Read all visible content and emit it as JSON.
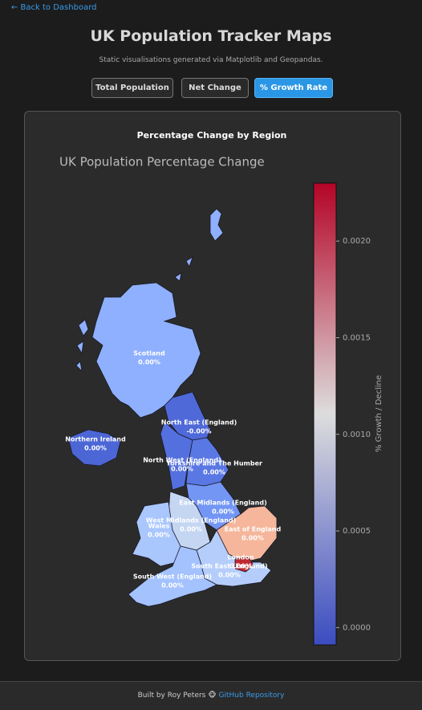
{
  "nav": {
    "back": "← Back to Dashboard"
  },
  "header": {
    "title": "UK Population Tracker Maps",
    "subtitle": "Static visualisations generated via Matplotlib and Geopandas."
  },
  "tabs": {
    "items": [
      "Total Population",
      "Net Change",
      "% Growth Rate"
    ],
    "active": 2
  },
  "card": {
    "heading": "Percentage Change by Region"
  },
  "map": {
    "title": "UK Population Percentage Change",
    "colorbar": {
      "label": "% Growth / Decline",
      "lim": [
        -9e-05,
        0.0023
      ],
      "ticks": [
        {
          "value": 0,
          "label": "0.0000"
        },
        {
          "value": 0.0005,
          "label": "0.0005"
        },
        {
          "value": 0.001,
          "label": "0.0010"
        },
        {
          "value": 0.0015,
          "label": "0.0015"
        },
        {
          "value": 0.002,
          "label": "0.0020"
        }
      ],
      "colors": [
        "#3b4cc0",
        "#dddddd",
        "#b40426"
      ]
    },
    "regions": [
      {
        "name": "Scotland",
        "value_label": "0.00%",
        "color": "#8fb0fe"
      },
      {
        "name": "North East (England)",
        "value_label": "-0.00%",
        "color": "#4f69d9"
      },
      {
        "name": "Northern Ireland",
        "value_label": "0.00%",
        "color": "#4c66d6"
      },
      {
        "name": "North West (England)",
        "value_label": "0.00%",
        "color": "#5470de"
      },
      {
        "name": "Yorkshire and The Humber",
        "value_label": "0.00%",
        "color": "#5a78e4"
      },
      {
        "name": "East Midlands (England)",
        "value_label": "0.00%",
        "color": "#7396f5"
      },
      {
        "name": "West Midlands (England)",
        "value_label": "0.00%",
        "color": "#c5d6f2"
      },
      {
        "name": "Wales",
        "value_label": "0.00%",
        "color": "#a9c6fd"
      },
      {
        "name": "East of England",
        "value_label": "0.00%",
        "color": "#f5b69b"
      },
      {
        "name": "London",
        "value_label": "0.00%",
        "color": "#c0282f"
      },
      {
        "name": "South East (England)",
        "value_label": "0.00%",
        "color": "#b5cdfa"
      },
      {
        "name": "South West (England)",
        "value_label": "0.00%",
        "color": "#a3c2fe"
      }
    ]
  },
  "footer": {
    "text": "Built by Roy Peters",
    "link": "GitHub Repository"
  }
}
